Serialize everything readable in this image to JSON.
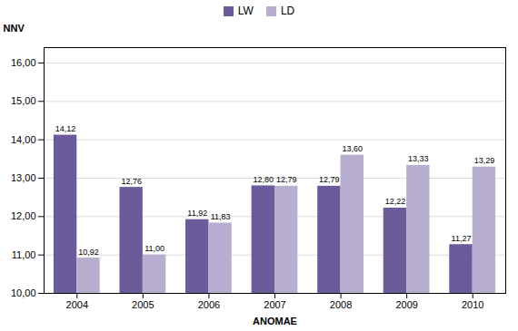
{
  "chart_data": {
    "type": "bar",
    "categories": [
      "2004",
      "2005",
      "2006",
      "2007",
      "2008",
      "2009",
      "2010"
    ],
    "series": [
      {
        "name": "LW",
        "color": "#6b5b9a",
        "values": [
          14.12,
          12.76,
          11.92,
          12.8,
          12.79,
          12.22,
          11.27
        ],
        "value_labels": [
          "14,12",
          "12,76",
          "11,92",
          "12,80",
          "12,79",
          "12,22",
          "11,27"
        ]
      },
      {
        "name": "LD",
        "color": "#b8afd0",
        "values": [
          10.92,
          11.0,
          11.83,
          12.79,
          13.6,
          13.33,
          13.29
        ],
        "value_labels": [
          "10,92",
          "11,00",
          "11,83",
          "12,79",
          "13,60",
          "13,33",
          "13,29"
        ]
      }
    ],
    "xlabel": "ANOMAE",
    "ylabel": "NNV",
    "ylim": [
      10.0,
      16.4
    ],
    "yticks": [
      {
        "value": 10,
        "label": "10,00"
      },
      {
        "value": 11,
        "label": "11,00"
      },
      {
        "value": 12,
        "label": "12,00"
      },
      {
        "value": 13,
        "label": "13,00"
      },
      {
        "value": 14,
        "label": "14,00"
      },
      {
        "value": 15,
        "label": "15,00"
      },
      {
        "value": 16,
        "label": "16,00"
      }
    ],
    "grid": true,
    "legend": "top",
    "data_labels": true
  }
}
